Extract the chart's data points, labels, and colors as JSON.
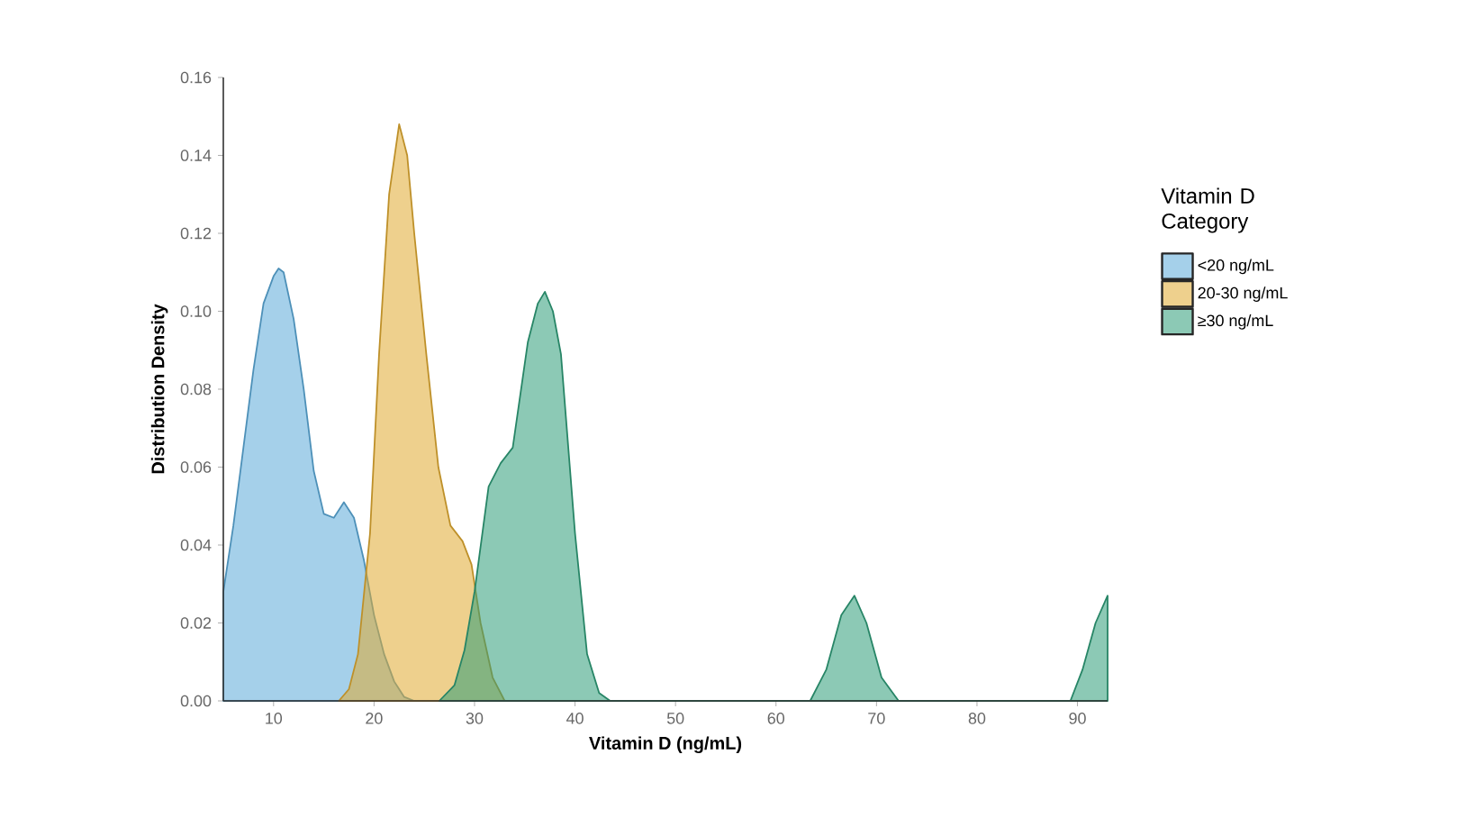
{
  "chart_data": {
    "type": "area",
    "xlabel": "Vitamin D (ng/mL)",
    "ylabel": "Distribution Density",
    "legend_title": "Vitamin D Category",
    "xlim": [
      5,
      93
    ],
    "ylim": [
      0,
      0.16
    ],
    "xticks": [
      10,
      20,
      30,
      40,
      50,
      60,
      70,
      80,
      90
    ],
    "yticks": [
      {
        "value": 0,
        "label": "0.00"
      },
      {
        "value": 0.02,
        "label": "0.02"
      },
      {
        "value": 0.04,
        "label": "0.04"
      },
      {
        "value": 0.06,
        "label": "0.06"
      },
      {
        "value": 0.08,
        "label": "0.08"
      },
      {
        "value": 0.1,
        "label": "0.10"
      },
      {
        "value": 0.12,
        "label": "0.12"
      },
      {
        "value": 0.14,
        "label": "0.14"
      },
      {
        "value": 0.16,
        "label": "0.16"
      }
    ],
    "grid": false,
    "legend": "right",
    "series": [
      {
        "name": "<20 ng/mL",
        "color": "#5ba9d9",
        "x": [
          5,
          6,
          7,
          8,
          9,
          10,
          10.5,
          11,
          12,
          13,
          14,
          15,
          16,
          17,
          18,
          19,
          20,
          21,
          22,
          23,
          24
        ],
        "values": [
          0.028,
          0.045,
          0.065,
          0.085,
          0.102,
          0.109,
          0.111,
          0.11,
          0.098,
          0.08,
          0.059,
          0.048,
          0.047,
          0.051,
          0.047,
          0.036,
          0.022,
          0.012,
          0.005,
          0.001,
          0
        ]
      },
      {
        "name": "20-30 ng/mL",
        "color": "#e0aa30",
        "x": [
          16.5,
          17.5,
          18.4,
          19.6,
          20.5,
          21.5,
          22.5,
          23.3,
          24,
          25.2,
          26.4,
          27.6,
          28.8,
          29.7,
          30.6,
          31.8,
          33
        ],
        "values": [
          0,
          0.003,
          0.012,
          0.043,
          0.089,
          0.13,
          0.148,
          0.14,
          0.12,
          0.089,
          0.06,
          0.045,
          0.041,
          0.035,
          0.02,
          0.006,
          0
        ]
      },
      {
        "name": "≥30 ng/mL",
        "color": "#2e9c78",
        "x": [
          26.5,
          28,
          29,
          30,
          31.4,
          32.6,
          33.8,
          35.3,
          36.3,
          37,
          37.8,
          38.6,
          40,
          41.2,
          42.4,
          43.5,
          63.4,
          65,
          66.5,
          67.8,
          69,
          70.5,
          72.2,
          89.3,
          90.5,
          91.8,
          93
        ],
        "values": [
          0,
          0.004,
          0.013,
          0.028,
          0.055,
          0.061,
          0.065,
          0.092,
          0.102,
          0.105,
          0.1,
          0.089,
          0.043,
          0.012,
          0.002,
          0,
          0,
          0.008,
          0.022,
          0.027,
          0.02,
          0.006,
          0,
          0,
          0.008,
          0.02,
          0.027
        ]
      }
    ]
  }
}
